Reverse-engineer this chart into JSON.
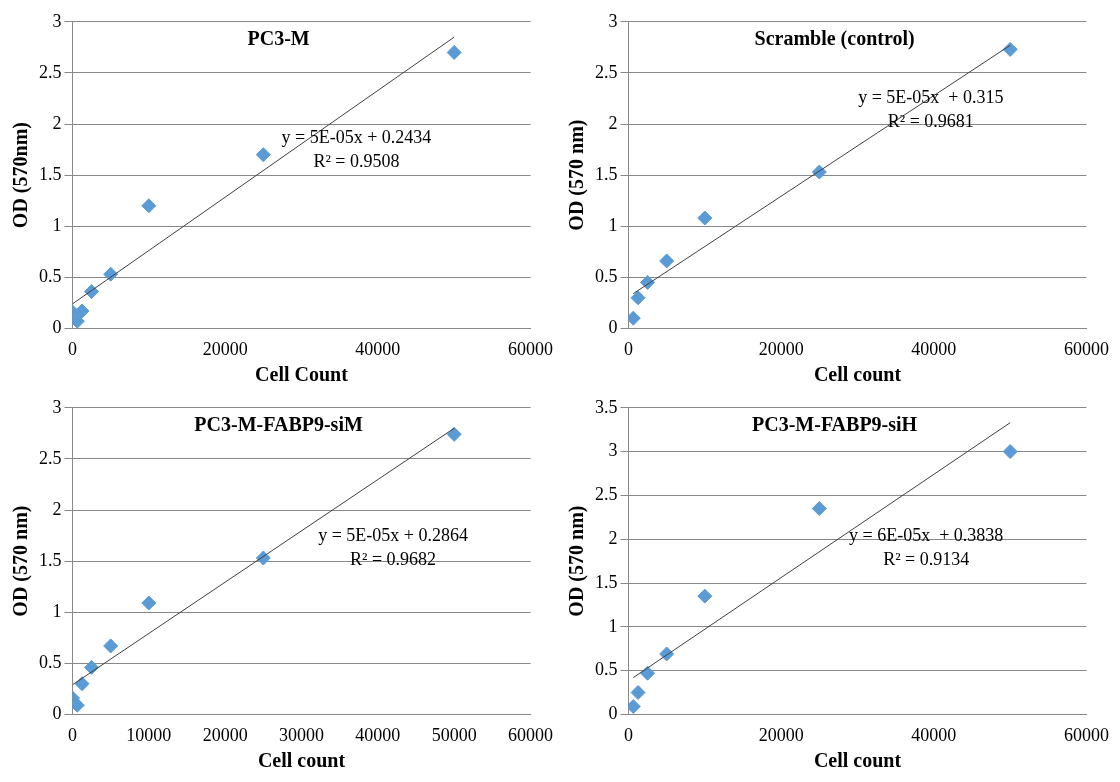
{
  "chart_data": [
    {
      "type": "scatter",
      "title": "PC3-M",
      "xlabel": "Cell Count",
      "ylabel": "OD (570nm)",
      "x": [
        0,
        625,
        1250,
        2500,
        5000,
        10000,
        25000,
        50000
      ],
      "xlim": [
        0,
        60000
      ],
      "xticks": [
        0,
        20000,
        40000,
        60000
      ],
      "ylim": [
        0,
        3
      ],
      "yticks": [
        0,
        0.5,
        1,
        1.5,
        2,
        2.5,
        3
      ],
      "grid": "y",
      "legend": false,
      "series": [
        {
          "type": "scatter",
          "marker": "diamond",
          "color": "#5b9bd5",
          "values": [
            0.16,
            0.07,
            0.17,
            0.36,
            0.53,
            1.2,
            1.7,
            2.7
          ]
        },
        {
          "type": "line",
          "color": "#404040",
          "x": [
            0,
            50000
          ],
          "values": [
            0.24,
            2.85
          ]
        }
      ],
      "annotations": [
        "y = 5E-05x + 0.2434",
        "R² = 0.9508"
      ]
    },
    {
      "type": "scatter",
      "title": "Scramble (control)",
      "xlabel": "Cell count",
      "ylabel": "OD (570 nm)",
      "x": [
        625,
        1250,
        2500,
        5000,
        10000,
        25000,
        50000
      ],
      "xlim": [
        0,
        60000
      ],
      "xticks": [
        0,
        20000,
        40000,
        60000
      ],
      "ylim": [
        0,
        3
      ],
      "yticks": [
        0,
        0.5,
        1,
        1.5,
        2,
        2.5,
        3
      ],
      "grid": "y",
      "legend": false,
      "series": [
        {
          "type": "scatter",
          "marker": "diamond",
          "color": "#5b9bd5",
          "values": [
            0.1,
            0.3,
            0.45,
            0.66,
            1.08,
            1.53,
            2.73
          ]
        },
        {
          "type": "line",
          "color": "#404040",
          "x": [
            625,
            50000
          ],
          "values": [
            0.34,
            2.77
          ]
        }
      ],
      "annotations": [
        "y = 5E-05x  + 0.315",
        "R² = 0.9681"
      ]
    },
    {
      "type": "scatter",
      "title": "PC3-M-FABP9-siM",
      "xlabel": "Cell count",
      "ylabel": "OD (570 nm)",
      "x": [
        0,
        625,
        1250,
        2500,
        5000,
        10000,
        25000,
        50000
      ],
      "xlim": [
        0,
        60000
      ],
      "xticks": [
        0,
        10000,
        20000,
        30000,
        40000,
        50000,
        60000
      ],
      "ylim": [
        0,
        3
      ],
      "yticks": [
        0,
        0.5,
        1,
        1.5,
        2,
        2.5,
        3
      ],
      "grid": "y",
      "legend": false,
      "series": [
        {
          "type": "scatter",
          "marker": "diamond",
          "color": "#5b9bd5",
          "values": [
            0.16,
            0.09,
            0.3,
            0.46,
            0.67,
            1.09,
            1.53,
            2.74
          ]
        },
        {
          "type": "line",
          "color": "#404040",
          "x": [
            0,
            50000
          ],
          "values": [
            0.29,
            2.8
          ]
        }
      ],
      "annotations": [
        "y = 5E-05x + 0.2864",
        "R² = 0.9682"
      ]
    },
    {
      "type": "scatter",
      "title": "PC3-M-FABP9-siH",
      "xlabel": "Cell count",
      "ylabel": "OD (570 nm)",
      "x": [
        625,
        1250,
        2500,
        5000,
        10000,
        25000,
        50000
      ],
      "xlim": [
        0,
        60000
      ],
      "xticks": [
        0,
        20000,
        40000,
        60000
      ],
      "ylim": [
        0,
        3.5
      ],
      "yticks": [
        0,
        0.5,
        1,
        1.5,
        2,
        2.5,
        3,
        3.5
      ],
      "grid": "y",
      "legend": false,
      "series": [
        {
          "type": "scatter",
          "marker": "diamond",
          "color": "#5b9bd5",
          "values": [
            0.09,
            0.25,
            0.47,
            0.69,
            1.35,
            2.35,
            3.0
          ]
        },
        {
          "type": "line",
          "color": "#404040",
          "x": [
            625,
            50000
          ],
          "values": [
            0.42,
            3.33
          ]
        }
      ],
      "annotations": [
        "y = 6E-05x  + 0.3838",
        "R² = 0.9134"
      ]
    }
  ]
}
